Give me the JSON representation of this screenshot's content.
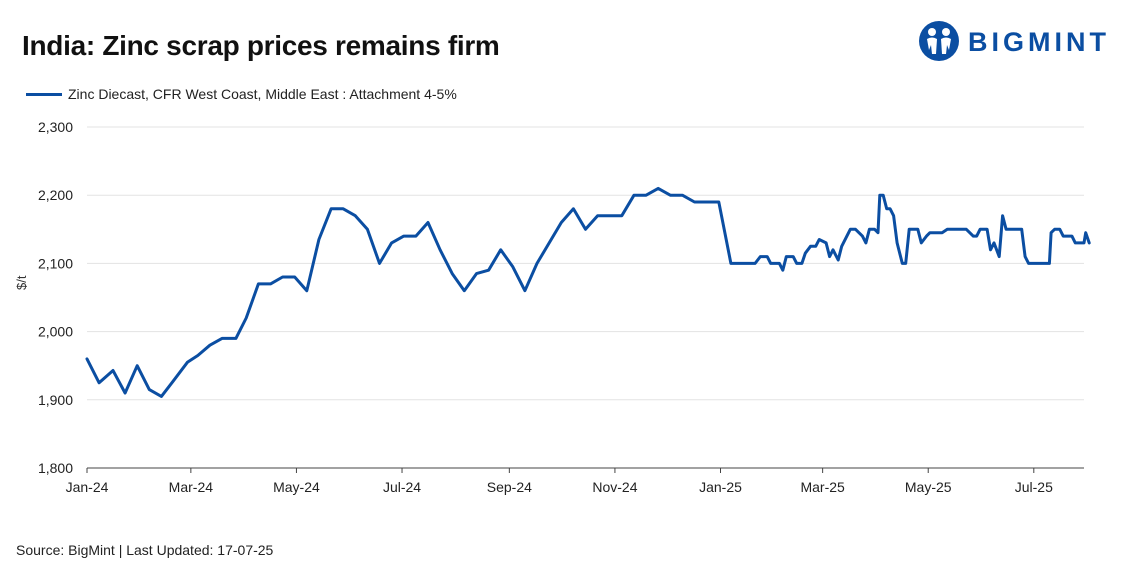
{
  "header": {
    "title": "India: Zinc scrap prices remains firm",
    "logo_text": "BIGMINT"
  },
  "footer": {
    "source": "Source: BigMint | Last Updated: 17-07-25"
  },
  "colors": {
    "series": "#0b4ea2",
    "grid": "#e3e3e3",
    "axis": "#444444"
  },
  "chart_data": {
    "type": "line",
    "title": "India: Zinc scrap prices remains firm",
    "xlabel": "",
    "ylabel": "$/t",
    "ylim": [
      1800,
      2300
    ],
    "y_ticks": [
      1800,
      1900,
      2000,
      2100,
      2200,
      2300
    ],
    "y_tick_labels": [
      "1,800",
      "1,900",
      "2,000",
      "2,100",
      "2,200",
      "2,300"
    ],
    "x_range": [
      "2024-01-01",
      "2025-07-17"
    ],
    "x_ticks": [
      "2024-01-01",
      "2024-03-01",
      "2024-05-01",
      "2024-07-01",
      "2024-09-01",
      "2024-11-01",
      "2025-01-01",
      "2025-03-01",
      "2025-05-01",
      "2025-07-01"
    ],
    "x_tick_labels": [
      "Jan-24",
      "Mar-24",
      "May-24",
      "Jul-24",
      "Sep-24",
      "Nov-24",
      "Jan-25",
      "Mar-25",
      "May-25",
      "Jul-25"
    ],
    "grid": true,
    "legend": "top-left",
    "series": [
      {
        "name": "Zinc Diecast, CFR West Coast, Middle East : Attachment 4-5%",
        "color": "#0b4ea2",
        "points": [
          [
            "2024-01-01",
            1960
          ],
          [
            "2024-01-08",
            1925
          ],
          [
            "2024-01-16",
            1943
          ],
          [
            "2024-01-23",
            1910
          ],
          [
            "2024-01-30",
            1950
          ],
          [
            "2024-02-06",
            1915
          ],
          [
            "2024-02-13",
            1905
          ],
          [
            "2024-02-20",
            1928
          ],
          [
            "2024-02-28",
            1955
          ],
          [
            "2024-03-05",
            1965
          ],
          [
            "2024-03-12",
            1980
          ],
          [
            "2024-03-19",
            1990
          ],
          [
            "2024-03-27",
            1990
          ],
          [
            "2024-04-02",
            2020
          ],
          [
            "2024-04-09",
            2070
          ],
          [
            "2024-04-16",
            2070
          ],
          [
            "2024-04-23",
            2080
          ],
          [
            "2024-04-30",
            2080
          ],
          [
            "2024-05-07",
            2060
          ],
          [
            "2024-05-14",
            2135
          ],
          [
            "2024-05-21",
            2180
          ],
          [
            "2024-05-28",
            2180
          ],
          [
            "2024-06-04",
            2170
          ],
          [
            "2024-06-11",
            2150
          ],
          [
            "2024-06-18",
            2100
          ],
          [
            "2024-06-25",
            2130
          ],
          [
            "2024-07-02",
            2140
          ],
          [
            "2024-07-09",
            2140
          ],
          [
            "2024-07-16",
            2160
          ],
          [
            "2024-07-23",
            2120
          ],
          [
            "2024-07-30",
            2085
          ],
          [
            "2024-08-06",
            2060
          ],
          [
            "2024-08-13",
            2085
          ],
          [
            "2024-08-20",
            2090
          ],
          [
            "2024-08-27",
            2120
          ],
          [
            "2024-09-03",
            2095
          ],
          [
            "2024-09-10",
            2060
          ],
          [
            "2024-09-17",
            2100
          ],
          [
            "2024-09-24",
            2130
          ],
          [
            "2024-10-01",
            2160
          ],
          [
            "2024-10-08",
            2180
          ],
          [
            "2024-10-15",
            2150
          ],
          [
            "2024-10-22",
            2170
          ],
          [
            "2024-10-29",
            2170
          ],
          [
            "2024-11-05",
            2170
          ],
          [
            "2024-11-12",
            2200
          ],
          [
            "2024-11-19",
            2200
          ],
          [
            "2024-11-26",
            2210
          ],
          [
            "2024-12-03",
            2200
          ],
          [
            "2024-12-10",
            2200
          ],
          [
            "2024-12-17",
            2190
          ],
          [
            "2024-12-24",
            2190
          ],
          [
            "2024-12-31",
            2190
          ],
          [
            "2025-01-07",
            2100
          ],
          [
            "2025-01-14",
            2100
          ],
          [
            "2025-01-21",
            2100
          ],
          [
            "2025-01-24",
            2110
          ],
          [
            "2025-01-28",
            2110
          ],
          [
            "2025-01-30",
            2100
          ],
          [
            "2025-02-04",
            2100
          ],
          [
            "2025-02-06",
            2090
          ],
          [
            "2025-02-08",
            2110
          ],
          [
            "2025-02-12",
            2110
          ],
          [
            "2025-02-14",
            2100
          ],
          [
            "2025-02-17",
            2100
          ],
          [
            "2025-02-19",
            2115
          ],
          [
            "2025-02-22",
            2125
          ],
          [
            "2025-02-25",
            2125
          ],
          [
            "2025-02-27",
            2135
          ],
          [
            "2025-03-03",
            2130
          ],
          [
            "2025-03-05",
            2110
          ],
          [
            "2025-03-07",
            2120
          ],
          [
            "2025-03-10",
            2105
          ],
          [
            "2025-03-12",
            2125
          ],
          [
            "2025-03-17",
            2150
          ],
          [
            "2025-03-20",
            2150
          ],
          [
            "2025-03-24",
            2140
          ],
          [
            "2025-03-26",
            2130
          ],
          [
            "2025-03-28",
            2150
          ],
          [
            "2025-03-31",
            2150
          ],
          [
            "2025-04-02",
            2145
          ],
          [
            "2025-04-03",
            2200
          ],
          [
            "2025-04-05",
            2200
          ],
          [
            "2025-04-07",
            2180
          ],
          [
            "2025-04-09",
            2180
          ],
          [
            "2025-04-11",
            2170
          ],
          [
            "2025-04-13",
            2130
          ],
          [
            "2025-04-16",
            2100
          ],
          [
            "2025-04-18",
            2100
          ],
          [
            "2025-04-20",
            2150
          ],
          [
            "2025-04-25",
            2150
          ],
          [
            "2025-04-27",
            2130
          ],
          [
            "2025-04-30",
            2140
          ],
          [
            "2025-05-02",
            2145
          ],
          [
            "2025-05-05",
            2145
          ],
          [
            "2025-05-09",
            2145
          ],
          [
            "2025-05-12",
            2150
          ],
          [
            "2025-05-19",
            2150
          ],
          [
            "2025-05-23",
            2150
          ],
          [
            "2025-05-27",
            2140
          ],
          [
            "2025-05-29",
            2140
          ],
          [
            "2025-05-31",
            2150
          ],
          [
            "2025-06-04",
            2150
          ],
          [
            "2025-06-06",
            2120
          ],
          [
            "2025-06-08",
            2130
          ],
          [
            "2025-06-11",
            2110
          ],
          [
            "2025-06-13",
            2170
          ],
          [
            "2025-06-15",
            2150
          ],
          [
            "2025-06-19",
            2150
          ],
          [
            "2025-06-24",
            2150
          ],
          [
            "2025-06-26",
            2110
          ],
          [
            "2025-06-28",
            2100
          ],
          [
            "2025-07-01",
            2100
          ],
          [
            "2025-07-05",
            2100
          ],
          [
            "2025-07-10",
            2100
          ],
          [
            "2025-07-11",
            2145
          ],
          [
            "2025-07-13",
            2150
          ],
          [
            "2025-07-16",
            2150
          ],
          [
            "2025-07-18",
            2140
          ],
          [
            "2025-07-23",
            2140
          ],
          [
            "2025-07-25",
            2130
          ],
          [
            "2025-07-30",
            2130
          ],
          [
            "2025-07-31",
            2145
          ],
          [
            "2025-08-02",
            2130
          ]
        ]
      }
    ]
  }
}
